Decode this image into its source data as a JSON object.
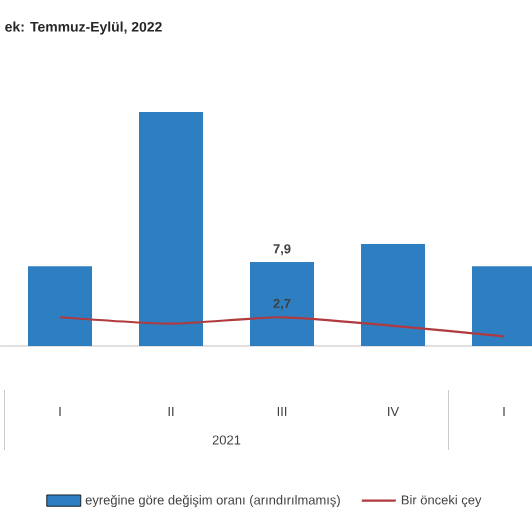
{
  "chart_data": {
    "type": "bar",
    "title": "ek: Temmuz-Eylül, 2022",
    "categories": [
      "I",
      "II",
      "III",
      "IV",
      "I"
    ],
    "series": [
      {
        "name": "eyreğine göre değişim oranı (arındırılmamış)",
        "color": "#2e7fc1",
        "values": [
          7.5,
          22.0,
          7.9,
          9.6,
          7.5
        ],
        "value_labels": [
          null,
          null,
          "7,9",
          null,
          null
        ]
      },
      {
        "name": "Bir önceki çey",
        "type": "line",
        "color": "#b03a3e",
        "values": [
          2.7,
          2.1,
          2.7,
          1.9,
          0.9
        ],
        "value_labels": [
          null,
          null,
          "2,7",
          null,
          null
        ]
      }
    ],
    "annotations": [
      "2021"
    ],
    "legend": "bottom"
  }
}
